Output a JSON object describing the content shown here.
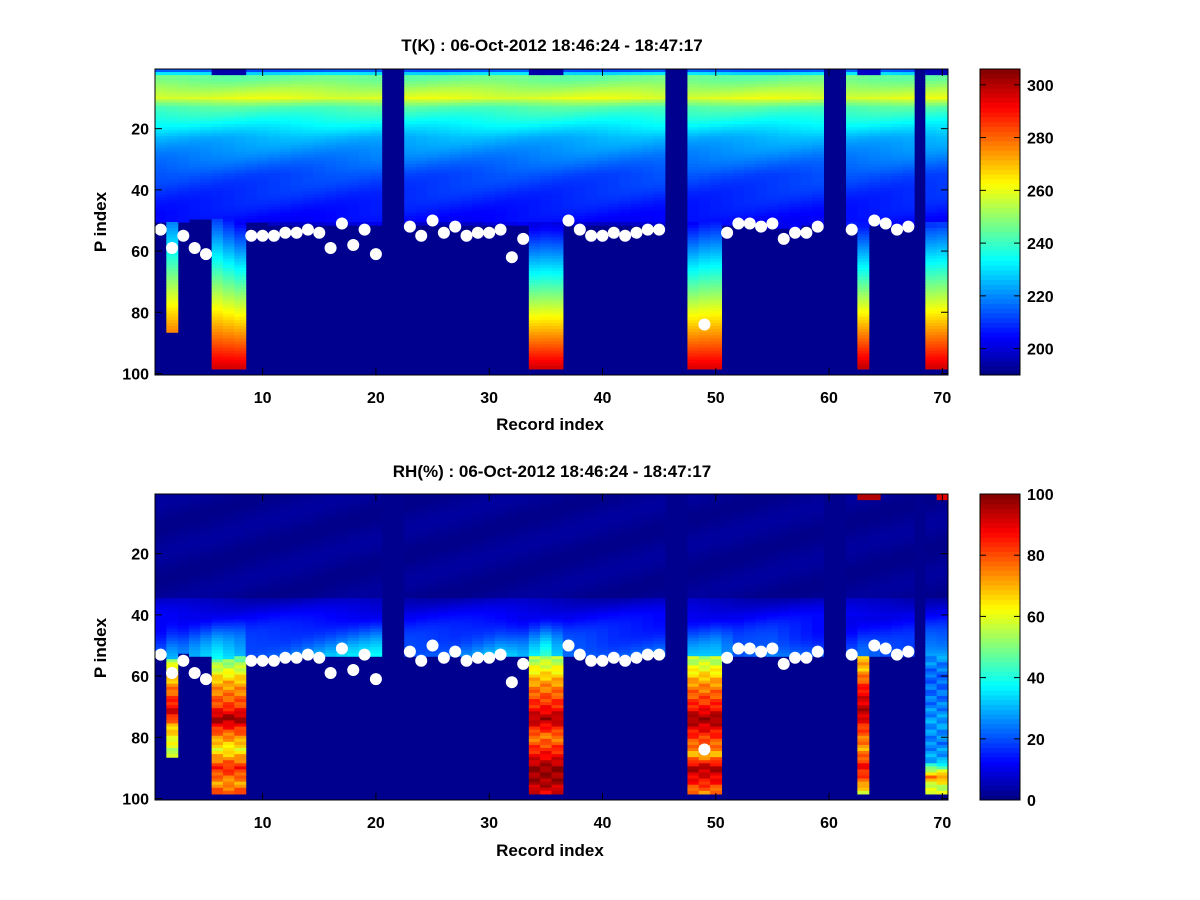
{
  "figure": {
    "background": "#ffffff"
  },
  "chart_data": [
    {
      "type": "heatmap",
      "title": "T(K) : 06-Oct-2012 18:46:24 - 18:47:17",
      "xlabel": "Record index",
      "ylabel": "P index",
      "xlim": [
        1,
        71
      ],
      "ylim": [
        1,
        100
      ],
      "y_reversed": true,
      "x_ticks": [
        10,
        20,
        30,
        40,
        50,
        60,
        70
      ],
      "y_ticks": [
        20,
        40,
        60,
        80,
        100
      ],
      "colormap": "jet",
      "clim": [
        190,
        306
      ],
      "colorbar_ticks": [
        200,
        220,
        240,
        260,
        280,
        300
      ],
      "fill_color": "#00008f",
      "empty_columns": [
        21,
        22,
        46,
        47,
        60,
        61,
        68
      ],
      "surface_profile": [
        [
          1,
          50,
          206
        ],
        [
          2,
          50,
          218
        ],
        [
          5,
          49,
          204
        ],
        [
          6,
          49,
          210
        ],
        [
          7,
          49,
          205
        ],
        [
          8,
          50,
          202
        ],
        [
          9,
          50,
          201
        ],
        [
          10,
          50,
          200
        ],
        [
          12,
          51,
          199
        ],
        [
          14,
          51,
          199
        ],
        [
          16,
          51,
          200
        ],
        [
          18,
          51,
          199
        ],
        [
          20,
          51,
          201
        ],
        [
          23,
          51,
          200
        ],
        [
          26,
          51,
          199
        ],
        [
          29,
          51,
          199
        ],
        [
          30,
          51,
          200
        ],
        [
          32,
          51,
          201
        ],
        [
          33,
          51,
          202
        ],
        [
          34,
          51,
          200
        ],
        [
          35,
          51,
          201
        ],
        [
          37,
          51,
          200
        ],
        [
          40,
          51,
          199
        ],
        [
          44,
          51,
          200
        ],
        [
          45,
          51,
          200
        ],
        [
          48,
          50,
          202
        ],
        [
          49,
          50,
          205
        ],
        [
          50,
          50,
          206
        ],
        [
          51,
          51,
          205
        ],
        [
          52,
          51,
          203
        ],
        [
          53,
          51,
          203
        ],
        [
          54,
          51,
          203
        ],
        [
          55,
          52,
          204
        ],
        [
          56,
          52,
          204
        ],
        [
          57,
          52,
          205
        ],
        [
          58,
          51,
          203
        ],
        [
          59,
          51,
          203
        ],
        [
          62,
          51,
          206
        ],
        [
          63,
          51,
          205
        ],
        [
          64,
          51,
          204
        ],
        [
          65,
          51,
          204
        ],
        [
          66,
          51,
          204
        ],
        [
          67,
          51,
          205
        ],
        [
          69,
          52,
          212
        ],
        [
          70,
          52,
          213
        ]
      ],
      "deep_profiles": [
        {
          "columns": [
            2,
            2
          ],
          "to_level": 86,
          "bottom_value": 276
        },
        {
          "columns": [
            6,
            8
          ],
          "to_level": 98,
          "bottom_value": 296
        },
        {
          "columns": [
            34,
            36
          ],
          "to_level": 98,
          "bottom_value": 296
        },
        {
          "columns": [
            48,
            50
          ],
          "to_level": 98,
          "bottom_value": 295
        },
        {
          "columns": [
            63,
            63
          ],
          "to_level": 98,
          "bottom_value": 298
        },
        {
          "columns": [
            69,
            70
          ],
          "to_level": 98,
          "bottom_value": 296
        }
      ],
      "top_rows": [
        {
          "columns": [
            6,
            8
          ],
          "level_from": 1,
          "level_to": 2,
          "value": 195
        },
        {
          "columns": [
            34,
            36
          ],
          "level_from": 1,
          "level_to": 2,
          "value": 195
        },
        {
          "columns": [
            63,
            64
          ],
          "level_from": 1,
          "level_to": 2,
          "value": 198
        },
        {
          "columns": [
            69,
            70
          ],
          "level_from": 1,
          "level_to": 2,
          "value": 196
        }
      ],
      "markers": {
        "color": "#ffffff",
        "x": [
          1,
          2,
          3,
          4,
          5,
          9,
          10,
          11,
          12,
          13,
          14,
          15,
          16,
          17,
          18,
          19,
          20,
          23,
          24,
          25,
          26,
          27,
          28,
          29,
          30,
          31,
          32,
          33,
          37,
          38,
          39,
          40,
          41,
          42,
          43,
          44,
          45,
          49,
          51,
          52,
          53,
          54,
          55,
          56,
          57,
          58,
          59,
          62,
          64,
          65,
          66,
          67
        ],
        "y": [
          53,
          59,
          55,
          59,
          61,
          55,
          55,
          55,
          54,
          54,
          53,
          54,
          59,
          51,
          58,
          53,
          61,
          52,
          55,
          50,
          54,
          52,
          55,
          54,
          54,
          53,
          62,
          56,
          50,
          53,
          55,
          55,
          54,
          55,
          54,
          53,
          53,
          84,
          54,
          51,
          51,
          52,
          51,
          56,
          54,
          54,
          52,
          53,
          50,
          51,
          53,
          52
        ]
      }
    },
    {
      "type": "heatmap",
      "title": "RH(%) : 06-Oct-2012 18:46:24 - 18:47:17",
      "xlabel": "Record index",
      "ylabel": "P index",
      "xlim": [
        1,
        71
      ],
      "ylim": [
        1,
        100
      ],
      "y_reversed": true,
      "x_ticks": [
        10,
        20,
        30,
        40,
        50,
        60,
        70
      ],
      "y_ticks": [
        20,
        40,
        60,
        80,
        100
      ],
      "colormap": "jet",
      "clim": [
        0,
        100
      ],
      "colorbar_ticks": [
        0,
        20,
        40,
        60,
        80,
        100
      ],
      "fill_color": "#00008f",
      "empty_columns": [
        21,
        22,
        46,
        47,
        60,
        61,
        68
      ],
      "surface_profile": [
        [
          1,
          53,
          18
        ],
        [
          2,
          54,
          25
        ],
        [
          3,
          52,
          22
        ],
        [
          5,
          53,
          30
        ],
        [
          6,
          54,
          35
        ],
        [
          8,
          53,
          30
        ],
        [
          9,
          53,
          20
        ],
        [
          12,
          53,
          22
        ],
        [
          16,
          53,
          28
        ],
        [
          20,
          53,
          35
        ],
        [
          23,
          53,
          20
        ],
        [
          27,
          53,
          22
        ],
        [
          31,
          53,
          30
        ],
        [
          33,
          53,
          26
        ],
        [
          35,
          53,
          40
        ],
        [
          37,
          53,
          22
        ],
        [
          41,
          53,
          20
        ],
        [
          45,
          53,
          22
        ],
        [
          48,
          53,
          28
        ],
        [
          50,
          53,
          30
        ],
        [
          52,
          53,
          20
        ],
        [
          55,
          53,
          25
        ],
        [
          58,
          53,
          20
        ],
        [
          59,
          53,
          18
        ],
        [
          62,
          53,
          16
        ],
        [
          63,
          53,
          20
        ],
        [
          65,
          53,
          18
        ],
        [
          67,
          53,
          18
        ],
        [
          69,
          53,
          28
        ],
        [
          70,
          53,
          28
        ]
      ],
      "deep_profiles": [
        {
          "columns": [
            2,
            2
          ],
          "to_level": 86,
          "values": [
            [
              55,
              55
            ],
            [
              64,
              75
            ],
            [
              72,
              92
            ],
            [
              76,
              70
            ],
            [
              82,
              60
            ],
            [
              86,
              55
            ]
          ]
        },
        {
          "columns": [
            6,
            8
          ],
          "to_level": 98,
          "values": [
            [
              55,
              50
            ],
            [
              62,
              70
            ],
            [
              70,
              82
            ],
            [
              74,
              98
            ],
            [
              78,
              80
            ],
            [
              84,
              62
            ],
            [
              90,
              85
            ],
            [
              95,
              72
            ],
            [
              98,
              80
            ]
          ]
        },
        {
          "columns": [
            34,
            36
          ],
          "to_level": 98,
          "values": [
            [
              55,
              55
            ],
            [
              62,
              72
            ],
            [
              70,
              85
            ],
            [
              74,
              96
            ],
            [
              80,
              75
            ],
            [
              86,
              88
            ],
            [
              90,
              98
            ],
            [
              95,
              96
            ],
            [
              98,
              90
            ]
          ]
        },
        {
          "columns": [
            48,
            50
          ],
          "to_level": 98,
          "values": [
            [
              55,
              55
            ],
            [
              62,
              72
            ],
            [
              70,
              85
            ],
            [
              74,
              98
            ],
            [
              80,
              82
            ],
            [
              86,
              70
            ],
            [
              90,
              96
            ],
            [
              95,
              85
            ],
            [
              98,
              75
            ]
          ]
        },
        {
          "columns": [
            63,
            63
          ],
          "to_level": 98,
          "values": [
            [
              58,
              70
            ],
            [
              65,
              88
            ],
            [
              72,
              95
            ],
            [
              78,
              80
            ],
            [
              84,
              72
            ],
            [
              90,
              88
            ],
            [
              95,
              75
            ],
            [
              98,
              60
            ]
          ]
        },
        {
          "columns": [
            69,
            70
          ],
          "to_level": 98,
          "values": [
            [
              53,
              28
            ],
            [
              60,
              22
            ],
            [
              68,
              24
            ],
            [
              75,
              28
            ],
            [
              82,
              25
            ],
            [
              88,
              30
            ],
            [
              93,
              75
            ],
            [
              96,
              55
            ],
            [
              98,
              60
            ]
          ]
        }
      ],
      "top_rows": [
        {
          "columns": [
            63,
            64
          ],
          "level_from": 1,
          "level_to": 2,
          "value": 95
        },
        {
          "columns": [
            70,
            70
          ],
          "level_from": 1,
          "level_to": 2,
          "value": 90
        }
      ],
      "markers": {
        "color": "#ffffff",
        "x": [
          1,
          2,
          3,
          4,
          5,
          9,
          10,
          11,
          12,
          13,
          14,
          15,
          16,
          17,
          18,
          19,
          20,
          23,
          24,
          25,
          26,
          27,
          28,
          29,
          30,
          31,
          32,
          33,
          37,
          38,
          39,
          40,
          41,
          42,
          43,
          44,
          45,
          49,
          51,
          52,
          53,
          54,
          55,
          56,
          57,
          58,
          59,
          62,
          64,
          65,
          66,
          67
        ],
        "y": [
          53,
          59,
          55,
          59,
          61,
          55,
          55,
          55,
          54,
          54,
          53,
          54,
          59,
          51,
          58,
          53,
          61,
          52,
          55,
          50,
          54,
          52,
          55,
          54,
          54,
          53,
          62,
          56,
          50,
          53,
          55,
          55,
          54,
          55,
          54,
          53,
          53,
          84,
          54,
          51,
          51,
          52,
          51,
          56,
          54,
          54,
          52,
          53,
          50,
          51,
          53,
          52
        ]
      }
    }
  ]
}
